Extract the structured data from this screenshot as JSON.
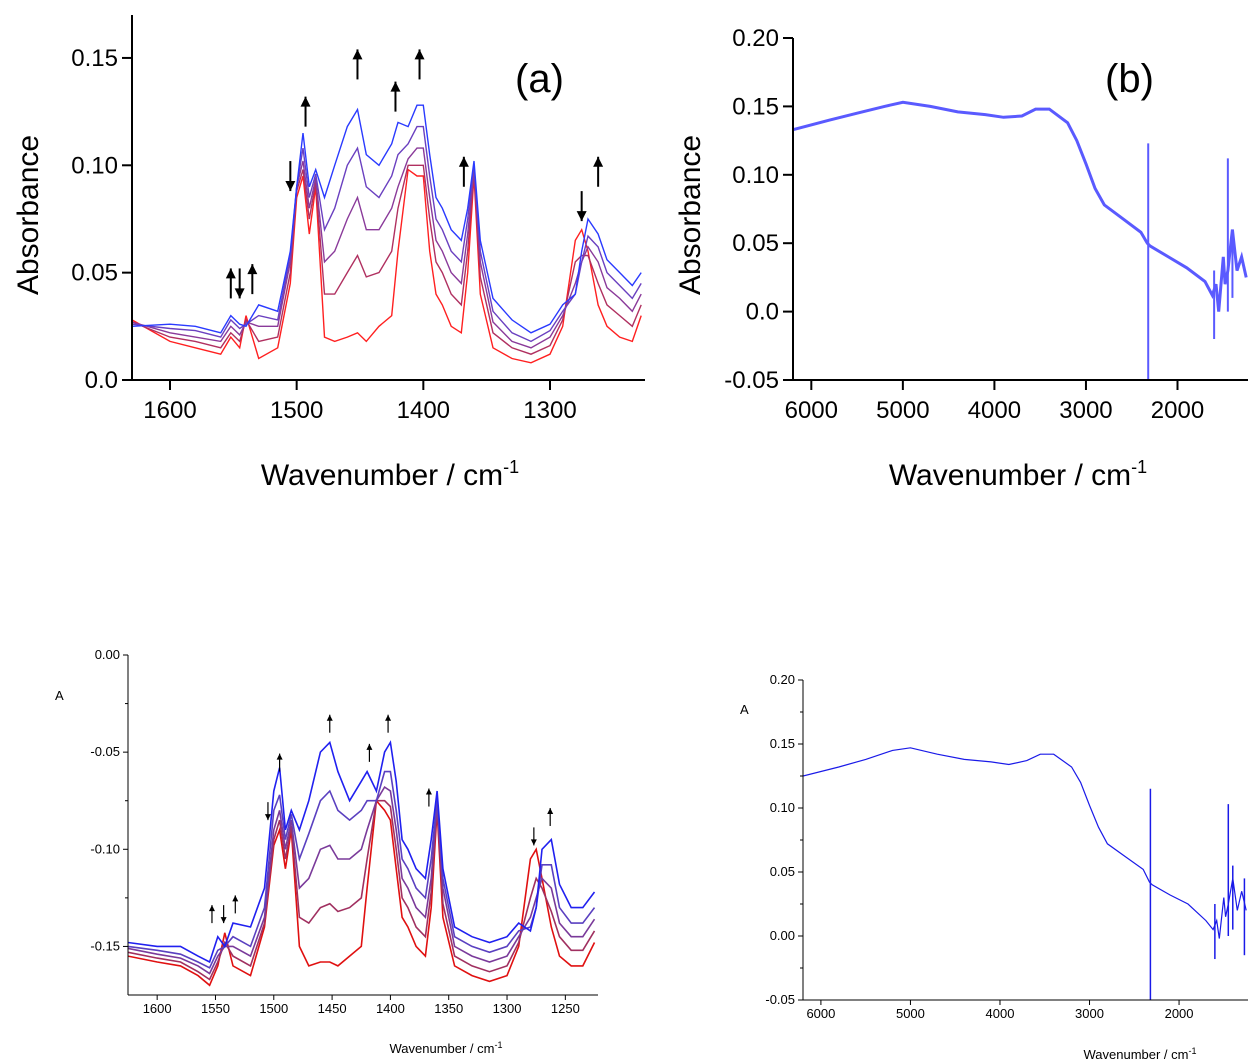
{
  "chart_data": [
    {
      "type": "line",
      "panel_label": "(a)",
      "ylabel": "Absorbance",
      "xlabel": "Wavenumber / cm",
      "xlabel_sup": "-1",
      "xlim": [
        1630,
        1225
      ],
      "ylim": [
        0.0,
        0.17
      ],
      "xticks": [
        1600,
        1500,
        1400,
        1300
      ],
      "yticks": [
        0.0,
        0.05,
        0.1,
        0.15
      ],
      "ytick_labels": [
        "0.0",
        "0.05",
        "0.10",
        "0.15"
      ],
      "colors": [
        "#ff2020",
        "#b03060",
        "#8a3a9a",
        "#6a40c0",
        "#2a3aff"
      ],
      "x": [
        1630,
        1600,
        1580,
        1560,
        1552,
        1545,
        1540,
        1530,
        1515,
        1505,
        1500,
        1495,
        1490,
        1485,
        1478,
        1470,
        1460,
        1452,
        1445,
        1435,
        1425,
        1420,
        1412,
        1405,
        1400,
        1395,
        1390,
        1385,
        1378,
        1370,
        1365,
        1360,
        1355,
        1345,
        1330,
        1315,
        1300,
        1290,
        1280,
        1275,
        1270,
        1262,
        1255,
        1245,
        1235,
        1228
      ],
      "series": [
        {
          "values": [
            0.028,
            0.018,
            0.015,
            0.012,
            0.02,
            0.015,
            0.03,
            0.01,
            0.015,
            0.045,
            0.085,
            0.095,
            0.068,
            0.09,
            0.02,
            0.018,
            0.02,
            0.022,
            0.018,
            0.025,
            0.03,
            0.06,
            0.098,
            0.095,
            0.095,
            0.06,
            0.04,
            0.035,
            0.025,
            0.022,
            0.05,
            0.095,
            0.04,
            0.015,
            0.01,
            0.008,
            0.012,
            0.025,
            0.065,
            0.07,
            0.06,
            0.035,
            0.025,
            0.02,
            0.018,
            0.03
          ]
        },
        {
          "values": [
            0.027,
            0.02,
            0.018,
            0.015,
            0.022,
            0.018,
            0.028,
            0.018,
            0.02,
            0.05,
            0.088,
            0.098,
            0.075,
            0.092,
            0.04,
            0.04,
            0.05,
            0.058,
            0.048,
            0.05,
            0.06,
            0.08,
            0.1,
            0.1,
            0.1,
            0.075,
            0.055,
            0.05,
            0.04,
            0.035,
            0.06,
            0.097,
            0.048,
            0.022,
            0.015,
            0.012,
            0.016,
            0.028,
            0.055,
            0.058,
            0.058,
            0.045,
            0.035,
            0.03,
            0.025,
            0.035
          ]
        },
        {
          "values": [
            0.027,
            0.022,
            0.02,
            0.018,
            0.025,
            0.021,
            0.027,
            0.025,
            0.025,
            0.055,
            0.09,
            0.102,
            0.08,
            0.094,
            0.055,
            0.06,
            0.075,
            0.085,
            0.07,
            0.07,
            0.08,
            0.09,
            0.103,
            0.108,
            0.108,
            0.085,
            0.065,
            0.06,
            0.05,
            0.045,
            0.068,
            0.098,
            0.055,
            0.027,
            0.018,
            0.015,
            0.02,
            0.03,
            0.045,
            0.055,
            0.062,
            0.055,
            0.043,
            0.038,
            0.032,
            0.04
          ]
        },
        {
          "values": [
            0.026,
            0.024,
            0.023,
            0.02,
            0.028,
            0.024,
            0.026,
            0.03,
            0.028,
            0.058,
            0.09,
            0.108,
            0.085,
            0.096,
            0.07,
            0.08,
            0.1,
            0.108,
            0.09,
            0.085,
            0.095,
            0.105,
            0.11,
            0.118,
            0.118,
            0.095,
            0.075,
            0.07,
            0.06,
            0.055,
            0.075,
            0.1,
            0.06,
            0.032,
            0.022,
            0.018,
            0.023,
            0.032,
            0.04,
            0.055,
            0.067,
            0.062,
            0.05,
            0.044,
            0.038,
            0.045
          ]
        },
        {
          "values": [
            0.025,
            0.026,
            0.025,
            0.022,
            0.03,
            0.026,
            0.025,
            0.035,
            0.032,
            0.06,
            0.09,
            0.115,
            0.09,
            0.098,
            0.085,
            0.1,
            0.118,
            0.126,
            0.105,
            0.1,
            0.11,
            0.12,
            0.118,
            0.128,
            0.128,
            0.105,
            0.085,
            0.08,
            0.07,
            0.065,
            0.08,
            0.102,
            0.065,
            0.038,
            0.028,
            0.022,
            0.026,
            0.035,
            0.04,
            0.06,
            0.075,
            0.068,
            0.056,
            0.05,
            0.044,
            0.05
          ]
        }
      ],
      "arrows": [
        {
          "x": 1552,
          "y": 0.038,
          "dir": "up"
        },
        {
          "x": 1545,
          "y": 0.038,
          "dir": "down"
        },
        {
          "x": 1535,
          "y": 0.04,
          "dir": "up"
        },
        {
          "x": 1505,
          "y": 0.088,
          "dir": "down"
        },
        {
          "x": 1493,
          "y": 0.118,
          "dir": "up"
        },
        {
          "x": 1452,
          "y": 0.14,
          "dir": "up"
        },
        {
          "x": 1422,
          "y": 0.125,
          "dir": "up"
        },
        {
          "x": 1403,
          "y": 0.14,
          "dir": "up"
        },
        {
          "x": 1368,
          "y": 0.09,
          "dir": "up"
        },
        {
          "x": 1275,
          "y": 0.074,
          "dir": "down"
        },
        {
          "x": 1262,
          "y": 0.09,
          "dir": "up"
        }
      ]
    },
    {
      "type": "line",
      "panel_label": "(b)",
      "ylabel": "Absorbance",
      "xlabel": "Wavenumber / cm",
      "xlabel_sup": "-1",
      "xlim": [
        6200,
        1230
      ],
      "ylim": [
        -0.05,
        0.2
      ],
      "xticks": [
        6000,
        5000,
        4000,
        3000,
        2000
      ],
      "yticks": [
        -0.05,
        0.0,
        0.05,
        0.1,
        0.15,
        0.2
      ],
      "ytick_labels": [
        "-0.05",
        "0.0",
        "0.05",
        "0.10",
        "0.15",
        "0.20"
      ],
      "color": "#5a5aff",
      "x": [
        6200,
        5800,
        5500,
        5200,
        5000,
        4700,
        4400,
        4100,
        3900,
        3700,
        3550,
        3400,
        3200,
        3100,
        3000,
        2900,
        2800,
        2600,
        2400,
        2330,
        2300,
        2100,
        1900,
        1700,
        1620,
        1580,
        1550,
        1500,
        1480,
        1450,
        1400,
        1350,
        1300,
        1250
      ],
      "y": [
        0.133,
        0.14,
        0.145,
        0.15,
        0.153,
        0.15,
        0.146,
        0.144,
        0.142,
        0.143,
        0.148,
        0.148,
        0.138,
        0.125,
        0.108,
        0.09,
        0.078,
        0.068,
        0.058,
        0.05,
        0.048,
        0.04,
        0.032,
        0.022,
        0.012,
        0.02,
        0.0,
        0.04,
        0.02,
        0.03,
        0.06,
        0.03,
        0.04,
        0.025
      ],
      "spikes": [
        {
          "x": 2320,
          "from": -0.05,
          "to": 0.123
        },
        {
          "x": 1600,
          "from": -0.02,
          "to": 0.03
        },
        {
          "x": 1450,
          "from": 0.0,
          "to": 0.112
        },
        {
          "x": 1400,
          "from": 0.01,
          "to": 0.06
        }
      ]
    },
    {
      "type": "line",
      "ylabel": "A",
      "xlabel": "Wavenumber / cm",
      "xlabel_sup": "-1",
      "xlim": [
        1625,
        1222
      ],
      "ylim": [
        -0.175,
        0.0
      ],
      "xticks": [
        1600,
        1550,
        1500,
        1450,
        1400,
        1350,
        1300,
        1250
      ],
      "yticks": [
        -0.15,
        -0.1,
        -0.05,
        0.0
      ],
      "ytick_labels": [
        "-0.15",
        "-0.10",
        "-0.05",
        "0.00"
      ],
      "colors": [
        "#e01010",
        "#a03060",
        "#7a3a9a",
        "#5a40c0",
        "#2020f0"
      ],
      "x": [
        1625,
        1600,
        1580,
        1565,
        1555,
        1548,
        1542,
        1535,
        1520,
        1508,
        1500,
        1495,
        1490,
        1485,
        1478,
        1470,
        1460,
        1452,
        1445,
        1435,
        1425,
        1420,
        1412,
        1405,
        1400,
        1395,
        1390,
        1385,
        1378,
        1370,
        1365,
        1360,
        1355,
        1345,
        1330,
        1315,
        1300,
        1290,
        1280,
        1275,
        1270,
        1262,
        1255,
        1245,
        1235,
        1225
      ],
      "series": [
        {
          "values": [
            -0.155,
            -0.158,
            -0.16,
            -0.165,
            -0.17,
            -0.16,
            -0.143,
            -0.16,
            -0.165,
            -0.14,
            -0.098,
            -0.09,
            -0.11,
            -0.09,
            -0.15,
            -0.16,
            -0.158,
            -0.158,
            -0.16,
            -0.155,
            -0.15,
            -0.12,
            -0.075,
            -0.08,
            -0.085,
            -0.11,
            -0.135,
            -0.14,
            -0.15,
            -0.155,
            -0.13,
            -0.08,
            -0.135,
            -0.16,
            -0.165,
            -0.168,
            -0.165,
            -0.15,
            -0.105,
            -0.1,
            -0.115,
            -0.14,
            -0.155,
            -0.16,
            -0.16,
            -0.148
          ]
        },
        {
          "values": [
            -0.153,
            -0.156,
            -0.158,
            -0.163,
            -0.167,
            -0.158,
            -0.148,
            -0.155,
            -0.16,
            -0.138,
            -0.095,
            -0.085,
            -0.105,
            -0.088,
            -0.135,
            -0.138,
            -0.13,
            -0.128,
            -0.132,
            -0.13,
            -0.125,
            -0.105,
            -0.075,
            -0.075,
            -0.078,
            -0.1,
            -0.125,
            -0.13,
            -0.14,
            -0.145,
            -0.122,
            -0.078,
            -0.128,
            -0.155,
            -0.16,
            -0.163,
            -0.16,
            -0.148,
            -0.125,
            -0.115,
            -0.12,
            -0.132,
            -0.145,
            -0.152,
            -0.152,
            -0.142
          ]
        },
        {
          "values": [
            -0.151,
            -0.154,
            -0.156,
            -0.16,
            -0.164,
            -0.155,
            -0.15,
            -0.15,
            -0.155,
            -0.135,
            -0.09,
            -0.08,
            -0.1,
            -0.085,
            -0.12,
            -0.115,
            -0.1,
            -0.098,
            -0.105,
            -0.105,
            -0.1,
            -0.09,
            -0.075,
            -0.068,
            -0.07,
            -0.09,
            -0.115,
            -0.12,
            -0.13,
            -0.135,
            -0.115,
            -0.076,
            -0.12,
            -0.15,
            -0.155,
            -0.158,
            -0.155,
            -0.145,
            -0.135,
            -0.125,
            -0.115,
            -0.12,
            -0.138,
            -0.145,
            -0.145,
            -0.136
          ]
        },
        {
          "values": [
            -0.15,
            -0.152,
            -0.154,
            -0.158,
            -0.161,
            -0.152,
            -0.15,
            -0.145,
            -0.15,
            -0.13,
            -0.08,
            -0.072,
            -0.095,
            -0.082,
            -0.105,
            -0.092,
            -0.075,
            -0.07,
            -0.08,
            -0.085,
            -0.08,
            -0.075,
            -0.075,
            -0.06,
            -0.06,
            -0.08,
            -0.105,
            -0.11,
            -0.12,
            -0.125,
            -0.105,
            -0.074,
            -0.115,
            -0.145,
            -0.15,
            -0.153,
            -0.15,
            -0.142,
            -0.14,
            -0.13,
            -0.108,
            -0.108,
            -0.13,
            -0.138,
            -0.138,
            -0.13
          ]
        },
        {
          "values": [
            -0.148,
            -0.15,
            -0.15,
            -0.155,
            -0.158,
            -0.145,
            -0.15,
            -0.138,
            -0.14,
            -0.12,
            -0.07,
            -0.058,
            -0.09,
            -0.08,
            -0.09,
            -0.075,
            -0.05,
            -0.045,
            -0.06,
            -0.075,
            -0.065,
            -0.06,
            -0.07,
            -0.05,
            -0.045,
            -0.065,
            -0.095,
            -0.1,
            -0.11,
            -0.115,
            -0.095,
            -0.07,
            -0.11,
            -0.14,
            -0.145,
            -0.148,
            -0.145,
            -0.138,
            -0.142,
            -0.13,
            -0.1,
            -0.095,
            -0.118,
            -0.13,
            -0.13,
            -0.122
          ]
        }
      ],
      "arrows": [
        {
          "x": 1553,
          "y": -0.138,
          "dir": "up"
        },
        {
          "x": 1543,
          "y": -0.138,
          "dir": "down"
        },
        {
          "x": 1533,
          "y": -0.133,
          "dir": "up"
        },
        {
          "x": 1505,
          "y": -0.085,
          "dir": "down"
        },
        {
          "x": 1495,
          "y": -0.06,
          "dir": "up"
        },
        {
          "x": 1452,
          "y": -0.04,
          "dir": "up"
        },
        {
          "x": 1418,
          "y": -0.055,
          "dir": "up"
        },
        {
          "x": 1402,
          "y": -0.04,
          "dir": "up"
        },
        {
          "x": 1367,
          "y": -0.078,
          "dir": "up"
        },
        {
          "x": 1277,
          "y": -0.098,
          "dir": "down"
        },
        {
          "x": 1263,
          "y": -0.088,
          "dir": "up"
        }
      ]
    },
    {
      "type": "line",
      "ylabel": "A",
      "xlabel": "Wavenumber / cm",
      "xlabel_sup": "-1",
      "xlim": [
        6200,
        1230
      ],
      "ylim": [
        -0.05,
        0.2
      ],
      "xticks": [
        6000,
        5000,
        4000,
        3000,
        2000
      ],
      "yticks": [
        -0.05,
        0.0,
        0.05,
        0.1,
        0.15,
        0.2
      ],
      "ytick_labels": [
        "-0.05",
        "0.00",
        "0.05",
        "0.10",
        "0.15",
        "0.20"
      ],
      "color": "#1a1ae8",
      "x": [
        6200,
        5800,
        5500,
        5200,
        5000,
        4700,
        4400,
        4100,
        3900,
        3700,
        3550,
        3400,
        3200,
        3100,
        3000,
        2900,
        2800,
        2600,
        2400,
        2330,
        2300,
        2100,
        1900,
        1700,
        1620,
        1580,
        1550,
        1500,
        1480,
        1450,
        1400,
        1350,
        1300,
        1250
      ],
      "y": [
        0.125,
        0.132,
        0.138,
        0.145,
        0.147,
        0.142,
        0.138,
        0.136,
        0.134,
        0.137,
        0.142,
        0.142,
        0.132,
        0.12,
        0.102,
        0.085,
        0.072,
        0.062,
        0.052,
        0.042,
        0.04,
        0.032,
        0.025,
        0.012,
        0.005,
        0.012,
        -0.002,
        0.03,
        0.015,
        0.025,
        0.045,
        0.02,
        0.035,
        0.02
      ],
      "spikes": [
        {
          "x": 2320,
          "from": -0.05,
          "to": 0.115
        },
        {
          "x": 1600,
          "from": -0.018,
          "to": 0.025
        },
        {
          "x": 1450,
          "from": 0.0,
          "to": 0.103
        },
        {
          "x": 1400,
          "from": 0.005,
          "to": 0.055
        },
        {
          "x": 1270,
          "from": -0.015,
          "to": 0.045
        }
      ]
    }
  ]
}
